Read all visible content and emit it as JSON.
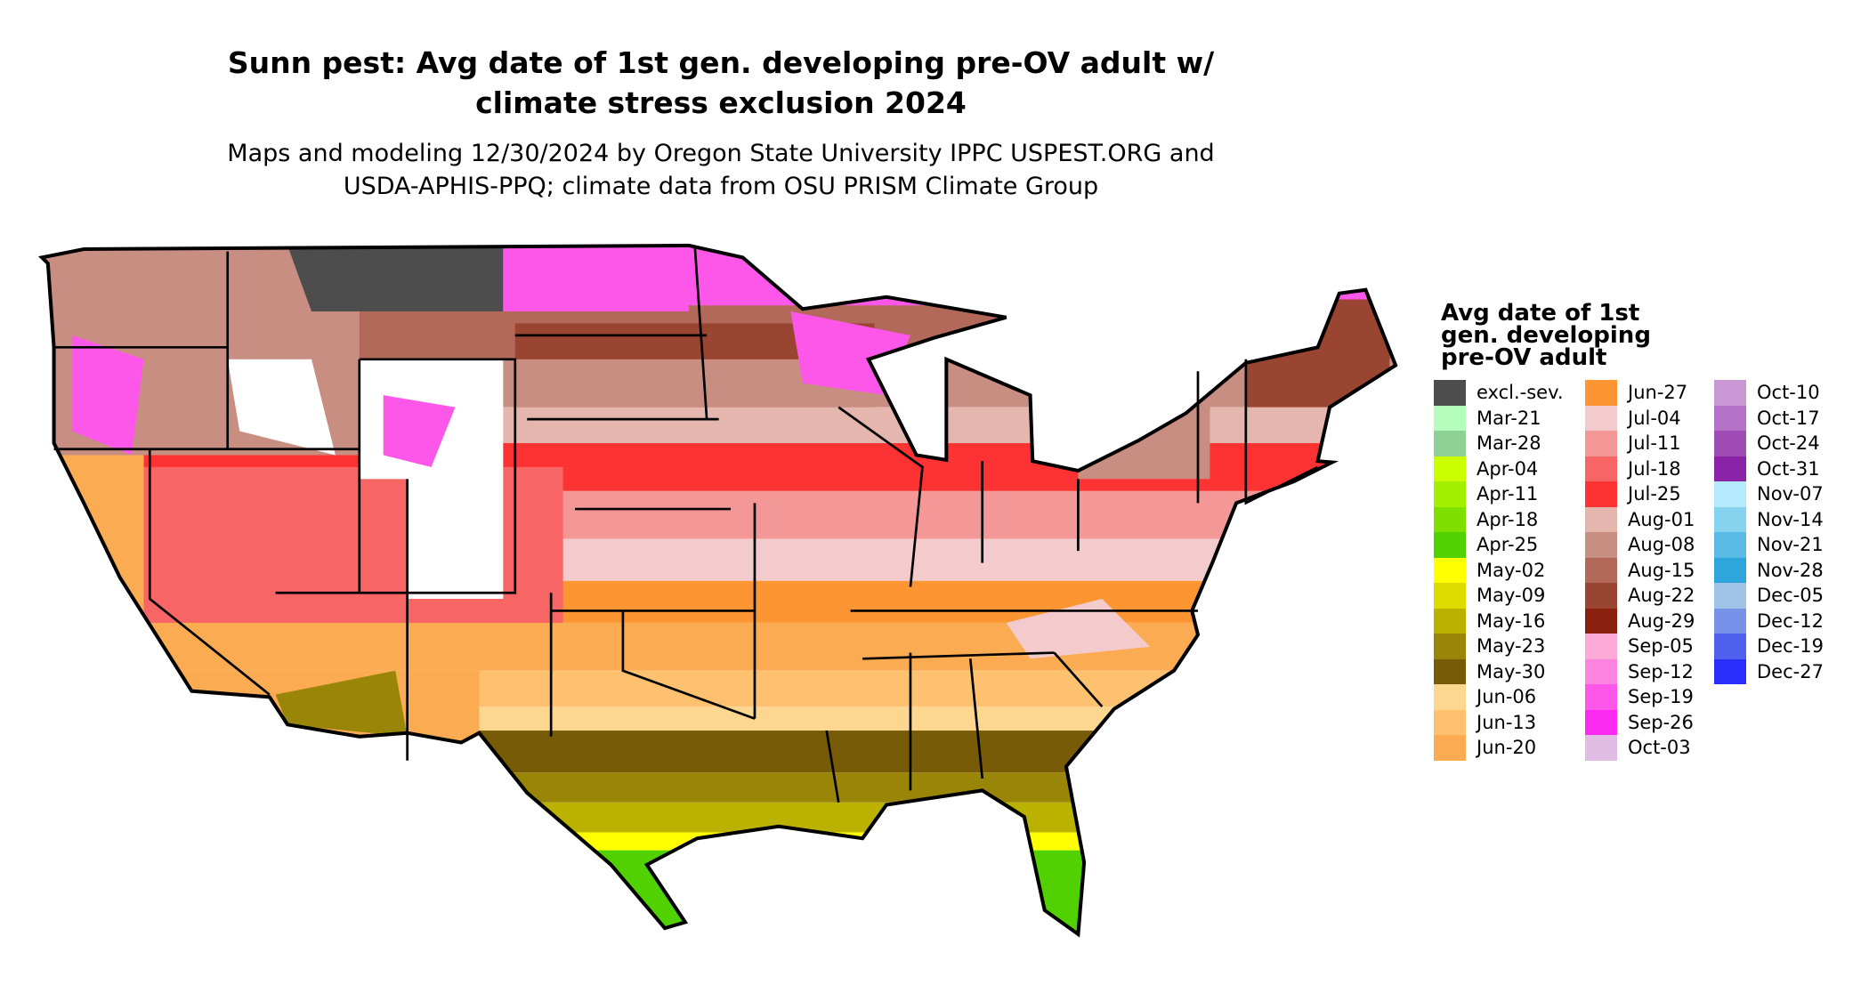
{
  "title": {
    "line1": "Sunn pest: Avg date of 1st gen. developing pre-OV adult w/",
    "line2": "climate stress exclusion 2024"
  },
  "subtitle": {
    "line1": "Maps and modeling 12/30/2024 by Oregon State University IPPC USPEST.ORG and",
    "line2": "USDA-APHIS-PPQ; climate data from OSU PRISM Climate Group"
  },
  "legend": {
    "title_lines": [
      "Avg date of 1st",
      "gen. developing",
      "pre-OV adult"
    ],
    "items": [
      {
        "label": "excl.-sev.",
        "color": "#4d4d4d"
      },
      {
        "label": "Mar-21",
        "color": "#b5fdbd"
      },
      {
        "label": "Mar-28",
        "color": "#8ed196"
      },
      {
        "label": "Apr-04",
        "color": "#cbff00"
      },
      {
        "label": "Apr-11",
        "color": "#a3ef00"
      },
      {
        "label": "Apr-18",
        "color": "#7fe000"
      },
      {
        "label": "Apr-25",
        "color": "#52d100"
      },
      {
        "label": "May-02",
        "color": "#ffff00"
      },
      {
        "label": "May-09",
        "color": "#dddb00"
      },
      {
        "label": "May-16",
        "color": "#bbb200"
      },
      {
        "label": "May-23",
        "color": "#998609"
      },
      {
        "label": "May-30",
        "color": "#775b06"
      },
      {
        "label": "Jun-06",
        "color": "#fdd68f"
      },
      {
        "label": "Jun-13",
        "color": "#fdc170"
      },
      {
        "label": "Jun-20",
        "color": "#fbab52"
      },
      {
        "label": "Jun-27",
        "color": "#fd9532"
      },
      {
        "label": "Jul-04",
        "color": "#f4cbcc"
      },
      {
        "label": "Jul-11",
        "color": "#f49797"
      },
      {
        "label": "Jul-18",
        "color": "#f76565"
      },
      {
        "label": "Jul-25",
        "color": "#fd3333"
      },
      {
        "label": "Aug-01",
        "color": "#e5b6ae"
      },
      {
        "label": "Aug-08",
        "color": "#c98e82"
      },
      {
        "label": "Aug-15",
        "color": "#b3695a"
      },
      {
        "label": "Aug-22",
        "color": "#9a4432"
      },
      {
        "label": "Aug-29",
        "color": "#88200d"
      },
      {
        "label": "Sep-05",
        "color": "#fdaad8"
      },
      {
        "label": "Sep-12",
        "color": "#fd83e1"
      },
      {
        "label": "Sep-19",
        "color": "#fd57e9"
      },
      {
        "label": "Sep-26",
        "color": "#fd2bf1"
      },
      {
        "label": "Oct-03",
        "color": "#e1bde6"
      },
      {
        "label": "Oct-10",
        "color": "#cb98d6"
      },
      {
        "label": "Oct-17",
        "color": "#b572c7"
      },
      {
        "label": "Oct-24",
        "color": "#9f4cb7"
      },
      {
        "label": "Oct-31",
        "color": "#8b23a9"
      },
      {
        "label": "Nov-07",
        "color": "#b3ebfd"
      },
      {
        "label": "Nov-14",
        "color": "#86d3f0"
      },
      {
        "label": "Nov-21",
        "color": "#5abce6"
      },
      {
        "label": "Nov-28",
        "color": "#2ea6db"
      },
      {
        "label": "Dec-05",
        "color": "#a0c4e8"
      },
      {
        "label": "Dec-12",
        "color": "#7892ea"
      },
      {
        "label": "Dec-19",
        "color": "#4f60ed"
      },
      {
        "label": "Dec-27",
        "color": "#2b2ffd"
      }
    ]
  }
}
